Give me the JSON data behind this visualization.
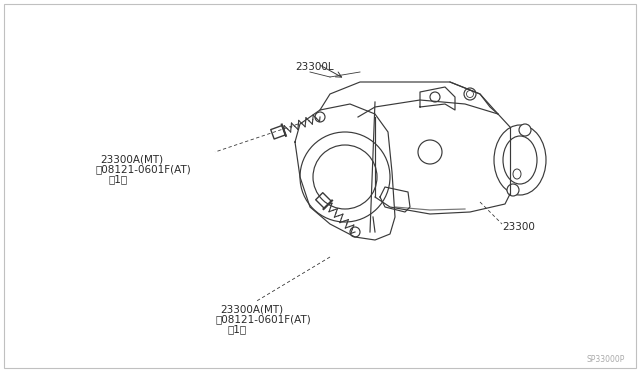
{
  "background_color": "#ffffff",
  "line_color": "#3a3a3a",
  "text_color": "#2a2a2a",
  "watermark": "SP33000P",
  "figsize": [
    6.4,
    3.72
  ],
  "dpi": 100,
  "labels": {
    "top_bolt_line1": "23300A(MT)",
    "top_bolt_line2": "Ⓑ08121-0601F(AT)",
    "top_bolt_line3": "（1）",
    "left_bolt_line1": "23300A(MT)",
    "left_bolt_line2": "Ⓑ08121-0601F(AT)",
    "left_bolt_line3": "（1）",
    "main": "23300",
    "bottom": "23300L"
  }
}
